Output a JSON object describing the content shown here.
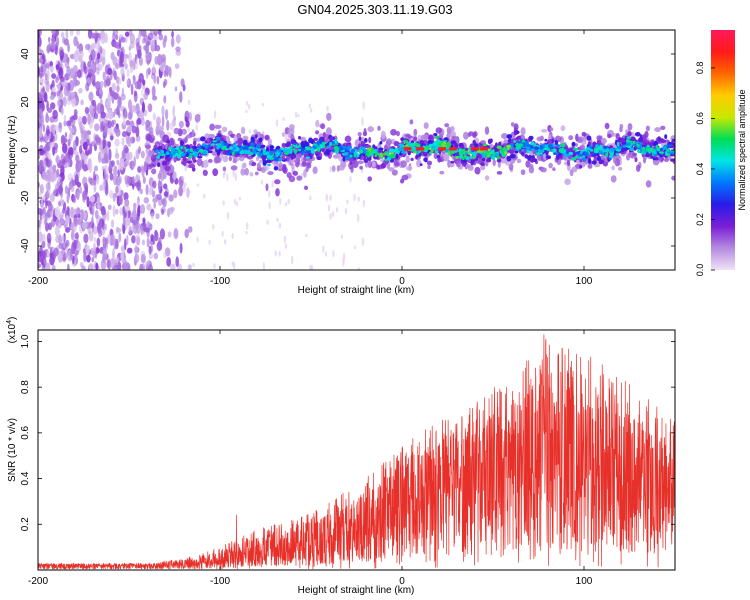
{
  "title": "GN04.2025.303.11.19.G03",
  "chart_data": [
    {
      "type": "heatmap",
      "name": "spectrogram",
      "xlabel": "Height of straight line (km)",
      "ylabel": "Frequency (Hz)",
      "xlim": [
        -200,
        150
      ],
      "ylim": [
        -50,
        50
      ],
      "xticks": [
        -200,
        -100,
        0,
        100
      ],
      "yticks": [
        -40,
        -20,
        0,
        20,
        40
      ],
      "colorbar": {
        "label": "Normalized spectral amplitude",
        "range": [
          0.0,
          0.95
        ],
        "ticks": [
          "0.0",
          "0.2",
          "0.4",
          "0.6",
          "0.8"
        ],
        "tick_values": [
          0.0,
          0.2,
          0.4,
          0.6,
          0.8
        ],
        "colors": [
          "#f0e2f7",
          "#b48be0",
          "#7b1fd6",
          "#2a1be8",
          "#0077ff",
          "#00e5e5",
          "#00dd55",
          "#c8e800",
          "#ffcc00",
          "#ff6600",
          "#ff1a1a",
          "#ff1a5a"
        ]
      },
      "description_points": {
        "noise_region_x": [
          -200,
          -115
        ],
        "band_x": [
          -140,
          150
        ],
        "band_center_hz": 0,
        "band_halfwidth_hz": 6,
        "peak_x": [
          3,
          10,
          22,
          28,
          40,
          45
        ],
        "peak_amplitude": 0.9
      }
    },
    {
      "type": "line",
      "name": "snr",
      "xlabel": "Height of straight line (km)",
      "ylabel": "SNR (10 * v/v)",
      "multiplier": "(x10",
      "multiplier_exp": "4",
      "xlim": [
        -200,
        150
      ],
      "ylim": [
        0,
        1.05
      ],
      "xticks": [
        -200,
        -100,
        0,
        100
      ],
      "yticks": [
        0.2,
        0.4,
        0.6,
        0.8,
        1.0
      ],
      "ytick_labels": [
        "0.2",
        "0.4",
        "0.6",
        "0.8",
        "1.0"
      ],
      "color": "#e8302a",
      "envelope": {
        "x": [
          -200,
          -140,
          -120,
          -100,
          -80,
          -60,
          -40,
          -20,
          0,
          20,
          40,
          60,
          80,
          100,
          120,
          150
        ],
        "mean": [
          0.02,
          0.02,
          0.025,
          0.04,
          0.06,
          0.08,
          0.12,
          0.18,
          0.3,
          0.36,
          0.42,
          0.45,
          0.48,
          0.42,
          0.38,
          0.36
        ],
        "max": [
          0.03,
          0.03,
          0.05,
          0.1,
          0.18,
          0.22,
          0.3,
          0.4,
          0.55,
          0.65,
          0.75,
          0.85,
          1.03,
          0.95,
          0.85,
          0.65
        ]
      },
      "highlights": [
        {
          "x": -91,
          "y": 0.24
        },
        {
          "x": 78,
          "y": 1.03
        },
        {
          "x": 88,
          "y": 0.97
        }
      ]
    }
  ]
}
